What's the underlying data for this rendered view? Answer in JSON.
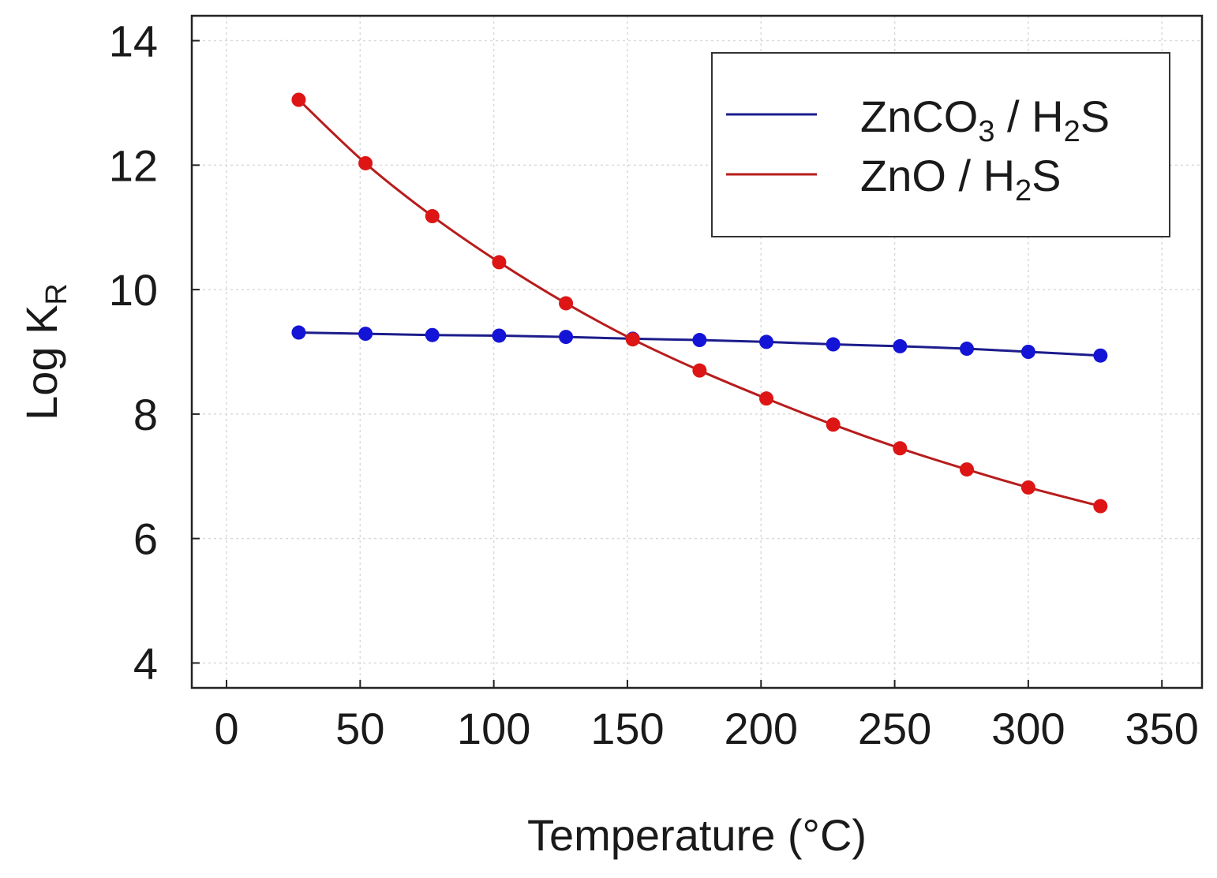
{
  "chart_data": {
    "type": "line",
    "xlabel": "Temperature (°C)",
    "ylabel": {
      "main": "Log K",
      "sub": "R"
    },
    "xlim": [
      -13,
      365
    ],
    "ylim": [
      3.6,
      14.4
    ],
    "xticks": [
      0,
      50,
      100,
      150,
      200,
      250,
      300,
      350
    ],
    "yticks": [
      4,
      6,
      8,
      10,
      12,
      14
    ],
    "xtick_labels": [
      "0",
      "50",
      "100",
      "150",
      "200",
      "250",
      "300",
      "350"
    ],
    "ytick_labels": [
      "4",
      "6",
      "8",
      "10",
      "12",
      "14"
    ],
    "grid": true,
    "legend_position": "top-right",
    "x": [
      27,
      52,
      77,
      102,
      127,
      152,
      177,
      202,
      227,
      252,
      277,
      300,
      327
    ],
    "series": [
      {
        "name": "ZnCO3 / H2S",
        "legend": {
          "a": "ZnCO",
          "a_sub": "3",
          "b": " / H",
          "b_sub": "2",
          "c": "S"
        },
        "color": "#1414d6",
        "line_color": "#1c1c8c",
        "values": [
          9.31,
          9.29,
          9.27,
          9.26,
          9.24,
          9.21,
          9.19,
          9.16,
          9.12,
          9.09,
          9.05,
          9.0,
          8.94
        ]
      },
      {
        "name": "ZnO / H2S",
        "legend": {
          "a": "ZnO / H",
          "a_sub": "2",
          "b": "S",
          "b_sub": "",
          "c": ""
        },
        "color": "#dd1515",
        "line_color": "#b81c1c",
        "values": [
          13.05,
          12.03,
          11.18,
          10.44,
          9.78,
          9.2,
          8.7,
          8.25,
          7.83,
          7.45,
          7.11,
          6.82,
          6.52
        ]
      }
    ]
  }
}
